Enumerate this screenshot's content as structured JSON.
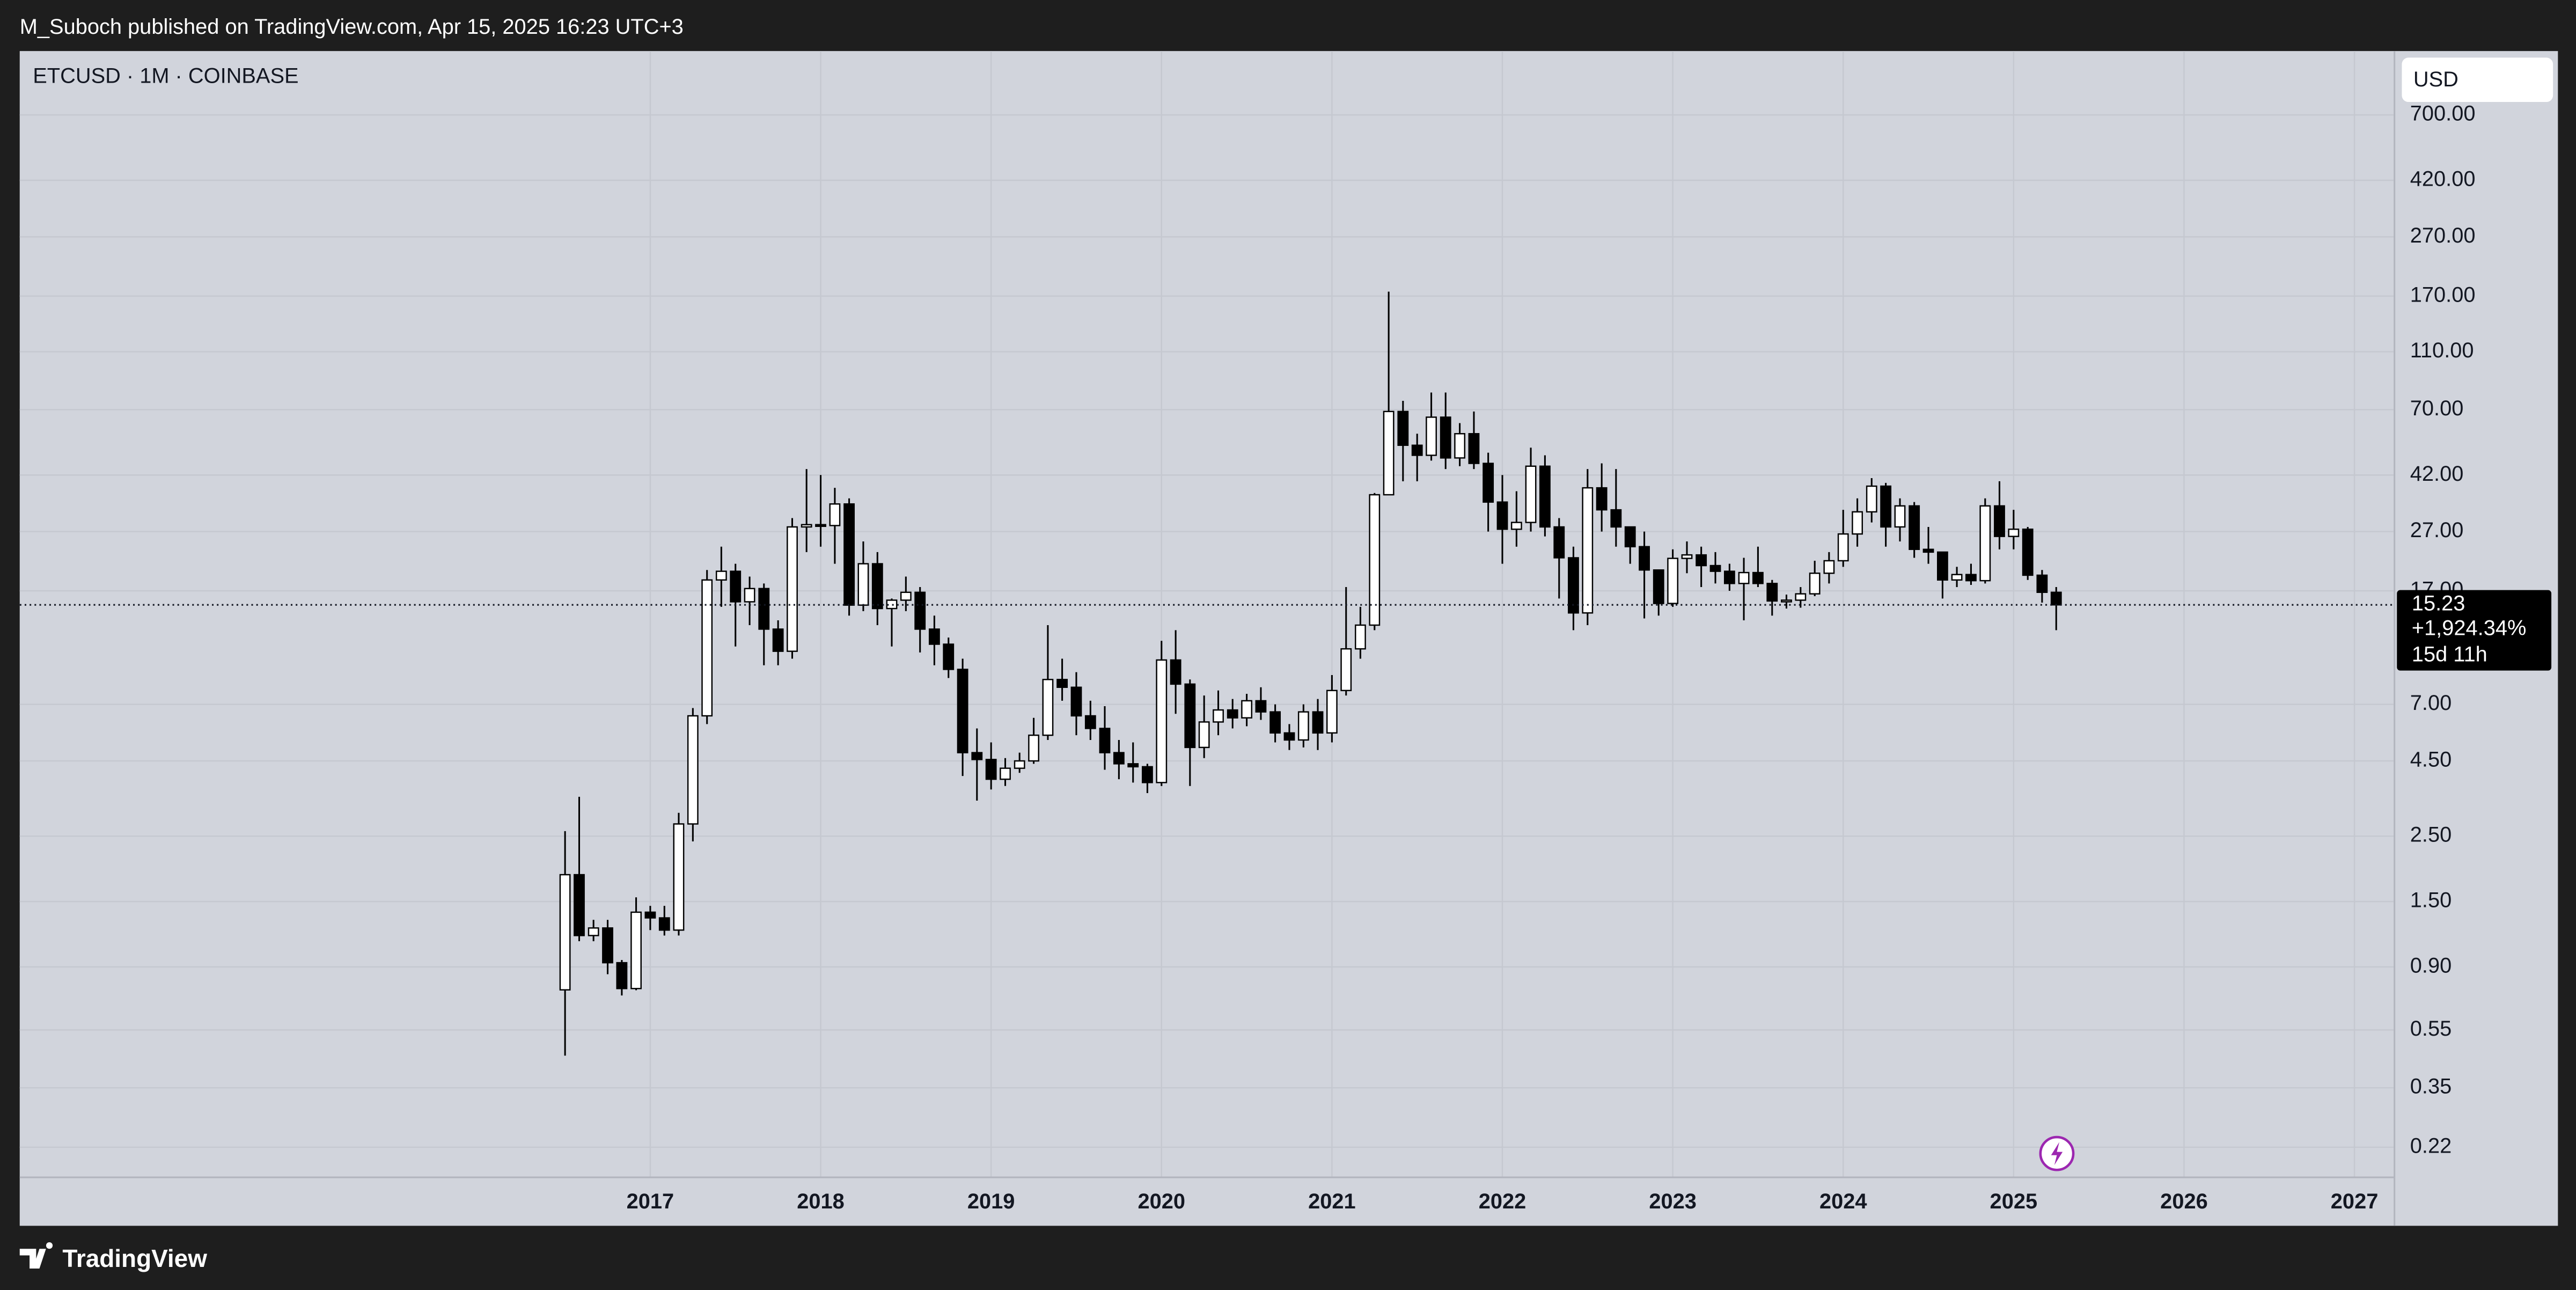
{
  "header": {
    "title": "M_Suboch published on TradingView.com, Apr 15, 2025 16:23 UTC+3"
  },
  "footer": {
    "brand": "TradingView"
  },
  "chart_data": {
    "type": "candlestick",
    "title": "ETCUSD · 1M · COINBASE",
    "currency": "USD",
    "log_scale": true,
    "grid": true,
    "up_color": "#ffffff",
    "down_color": "#000000",
    "x": [
      2016.5,
      2016.583,
      2016.667,
      2016.75,
      2016.833,
      2016.917,
      2017,
      2017.083,
      2017.167,
      2017.25,
      2017.333,
      2017.417,
      2017.5,
      2017.583,
      2017.667,
      2017.75,
      2017.833,
      2017.917,
      2018,
      2018.083,
      2018.167,
      2018.25,
      2018.333,
      2018.417,
      2018.5,
      2018.583,
      2018.667,
      2018.75,
      2018.833,
      2018.917,
      2019,
      2019.083,
      2019.167,
      2019.25,
      2019.333,
      2019.417,
      2019.5,
      2019.583,
      2019.667,
      2019.75,
      2019.833,
      2019.917,
      2020,
      2020.083,
      2020.167,
      2020.25,
      2020.333,
      2020.417,
      2020.5,
      2020.583,
      2020.667,
      2020.75,
      2020.833,
      2020.917,
      2021,
      2021.083,
      2021.167,
      2021.25,
      2021.333,
      2021.417,
      2021.5,
      2021.583,
      2021.667,
      2021.75,
      2021.833,
      2021.917,
      2022,
      2022.083,
      2022.167,
      2022.25,
      2022.333,
      2022.417,
      2022.5,
      2022.583,
      2022.667,
      2022.75,
      2022.833,
      2022.917,
      2023,
      2023.083,
      2023.167,
      2023.25,
      2023.333,
      2023.417,
      2023.5,
      2023.583,
      2023.667,
      2023.75,
      2023.833,
      2023.917,
      2024,
      2024.083,
      2024.167,
      2024.25,
      2024.333,
      2024.417,
      2024.5,
      2024.583,
      2024.667,
      2024.75,
      2024.833,
      2024.917,
      2025,
      2025.083,
      2025.167,
      2025.25
    ],
    "open": [
      0.7523,
      1.85,
      1.15,
      1.22,
      0.93,
      0.76,
      1.38,
      1.32,
      1.2,
      2.75,
      6.4,
      18.5,
      19.8,
      15.6,
      17.3,
      12.6,
      10.6,
      28,
      28.5,
      28.3,
      33.5,
      15.2,
      21,
      14.8,
      15.8,
      16.8,
      12.6,
      11.2,
      9.2,
      4.8,
      4.55,
      3.9,
      4.25,
      4.5,
      5.5,
      8.5,
      8.0,
      6.4,
      5.8,
      4.8,
      4.4,
      4.3,
      3.8,
      9.9,
      8.2,
      5.0,
      6.1,
      6.7,
      6.3,
      7.2,
      6.6,
      5.6,
      5.3,
      6.6,
      5.6,
      7.8,
      10.8,
      13,
      36,
      69,
      53,
      49,
      66,
      48,
      58,
      46,
      34,
      27.5,
      29,
      45,
      28,
      22,
      14.3,
      38,
      32,
      28,
      24,
      20,
      15.4,
      21.9,
      22.5,
      20.7,
      19.8,
      18,
      19.6,
      18,
      15.7,
      15.8,
      16.6,
      19.5,
      21.5,
      26.5,
      31.5,
      38.5,
      28,
      33,
      23.5,
      23,
      18.5,
      19.3,
      18.4,
      33,
      26,
      27.5,
      19.2,
      16.8
    ],
    "high": [
      2.6,
      3.4,
      1.3,
      1.3,
      0.95,
      1.55,
      1.45,
      1.45,
      3.0,
      6.8,
      20,
      24,
      21,
      19,
      18,
      13.5,
      30,
      44,
      42,
      38,
      35,
      25,
      23,
      16,
      19,
      17.5,
      14,
      11.8,
      10,
      5.8,
      5.2,
      4.6,
      4.8,
      6.3,
      13,
      10,
      9,
      7.2,
      6.9,
      5.3,
      5.2,
      4.4,
      11.5,
      12.5,
      8.5,
      7.5,
      7.8,
      7.3,
      7.6,
      8.0,
      7.0,
      6.0,
      7.0,
      7.3,
      8.8,
      17.5,
      15,
      36.5,
      176,
      75,
      58,
      80,
      80,
      63,
      69,
      50,
      42,
      37,
      52,
      49,
      30,
      24,
      44,
      46,
      44,
      28,
      27,
      20,
      23.5,
      25,
      24,
      23,
      21,
      22,
      24,
      18.5,
      16.5,
      17.5,
      21.5,
      23,
      32,
      35,
      41,
      39.5,
      35,
      34,
      28,
      23,
      20.5,
      21,
      35,
      40,
      32,
      28,
      20,
      17.5
    ],
    "low": [
      0.45,
      1.1,
      1.1,
      0.85,
      0.72,
      0.75,
      1.2,
      1.15,
      1.15,
      2.4,
      6.0,
      15,
      11,
      13,
      9.5,
      9.5,
      10,
      23,
      24,
      21,
      14,
      14.5,
      13,
      11,
      14.5,
      10.5,
      9.5,
      8.6,
      4,
      3.3,
      3.6,
      3.7,
      4.1,
      4.4,
      5.3,
      7.2,
      5.5,
      5.3,
      4.2,
      3.9,
      3.8,
      3.5,
      3.7,
      6.5,
      3.7,
      4.6,
      5.5,
      5.8,
      5.9,
      6.2,
      5.2,
      4.9,
      5.0,
      4.9,
      5.2,
      7.5,
      10,
      12.5,
      36,
      40,
      40,
      47,
      44,
      45,
      44,
      27,
      21,
      24,
      27,
      26,
      16,
      12.5,
      13,
      27,
      24,
      21,
      13.7,
      14,
      15,
      19.5,
      17.5,
      18,
      17,
      13.5,
      17.5,
      14,
      14.8,
      14.9,
      16.3,
      18,
      20.5,
      24,
      29,
      24,
      25,
      22,
      21,
      16,
      17.5,
      17.8,
      18,
      23.5,
      23.5,
      18.5,
      15.5,
      12.5
    ],
    "close": [
      1.85,
      1.15,
      1.22,
      0.93,
      0.76,
      1.38,
      1.32,
      1.2,
      2.75,
      6.4,
      18.5,
      19.8,
      15.6,
      17.3,
      12.6,
      10.6,
      28,
      28.5,
      28.3,
      33.5,
      15.2,
      21,
      14.8,
      15.8,
      16.8,
      12.6,
      11.2,
      9.2,
      4.8,
      4.55,
      3.9,
      4.25,
      4.5,
      5.5,
      8.5,
      8.0,
      6.4,
      5.8,
      4.8,
      4.4,
      4.3,
      3.8,
      9.9,
      8.2,
      5.0,
      6.1,
      6.7,
      6.3,
      7.2,
      6.6,
      5.6,
      5.3,
      6.6,
      5.6,
      7.8,
      10.8,
      13,
      36,
      69,
      53,
      49,
      66,
      48,
      58,
      46,
      34,
      27.5,
      29,
      45,
      28,
      22,
      14.3,
      38,
      32,
      28,
      24,
      20,
      15.4,
      21.9,
      22.5,
      20.7,
      19.8,
      18,
      19.6,
      18,
      15.7,
      15.8,
      16.6,
      19.5,
      21.5,
      26.5,
      31.5,
      38.5,
      28,
      33,
      23.5,
      23,
      18.5,
      19.3,
      18.4,
      33,
      26,
      27.5,
      19.2,
      16.8,
      15.23
    ],
    "change_label": "+1,924.34%",
    "countdown_label": "15d 11h",
    "xlim": [
      2013.3,
      2027.23
    ],
    "xticks": [
      2017,
      2018,
      2019,
      2020,
      2021,
      2022,
      2023,
      2024,
      2025,
      2026,
      2027
    ],
    "ylim": [
      0.175,
      1153
    ],
    "yticks": [
      {
        "value": 0.22,
        "label": "0.22"
      },
      {
        "value": 0.35,
        "label": "0.35"
      },
      {
        "value": 0.55,
        "label": "0.55"
      },
      {
        "value": 0.9,
        "label": "0.90"
      },
      {
        "value": 1.5,
        "label": "1.50"
      },
      {
        "value": 2.5,
        "label": "2.50"
      },
      {
        "value": 4.5,
        "label": "4.50"
      },
      {
        "value": 7,
        "label": "7.00"
      },
      {
        "value": 17,
        "label": "17.00"
      },
      {
        "value": 27,
        "label": "27.00"
      },
      {
        "value": 42,
        "label": "42.00"
      },
      {
        "value": 70,
        "label": "70.00"
      },
      {
        "value": 110,
        "label": "110.00"
      },
      {
        "value": 170,
        "label": "170.00"
      },
      {
        "value": 270,
        "label": "270.00"
      },
      {
        "value": 420,
        "label": "420.00"
      },
      {
        "value": 700,
        "label": "700.00"
      }
    ]
  }
}
